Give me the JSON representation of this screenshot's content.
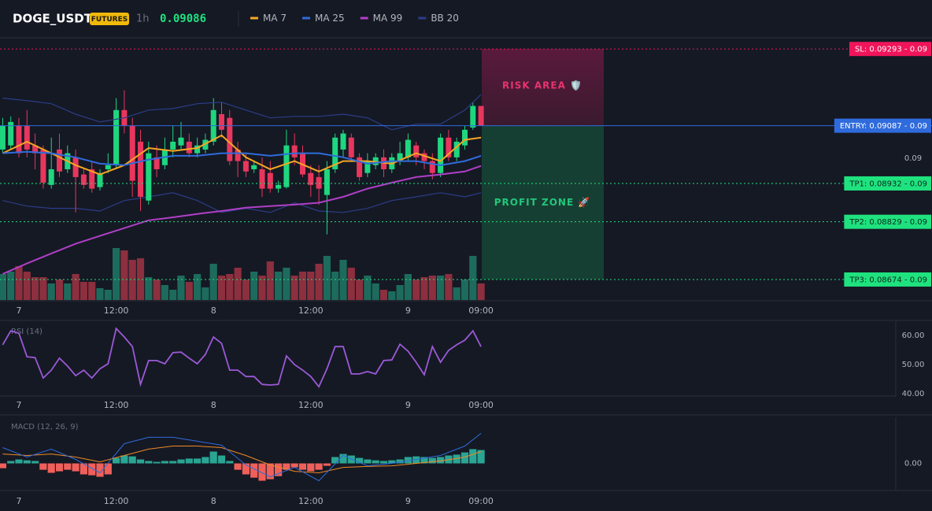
{
  "chart_data": [
    {
      "type": "candlestick",
      "title": "DOGE_USDT",
      "badge": "FUTURES",
      "interval": "1h",
      "last_price": 0.09086,
      "categories": [
        null,
        null,
        "7",
        null,
        null,
        null,
        null,
        null,
        null,
        null,
        null,
        null,
        null,
        null,
        "12:00",
        null,
        null,
        null,
        null,
        null,
        null,
        null,
        null,
        null,
        null,
        null,
        "8",
        null,
        null,
        null,
        null,
        null,
        null,
        null,
        null,
        null,
        null,
        null,
        "12:00",
        null,
        null,
        null,
        null,
        null,
        null,
        null,
        null,
        null,
        null,
        null,
        "9",
        null,
        null,
        null,
        null,
        null,
        null,
        null,
        null,
        "09:00"
      ],
      "open": [
        0.09023,
        0.09034,
        0.09087,
        0.09087,
        0.09034,
        0.09023,
        0.08928,
        0.09023,
        0.0897,
        0.09002,
        0.08956,
        0.0897,
        0.08922,
        0.0897,
        0.08981,
        0.09129,
        0.09087,
        0.09044,
        0.08886,
        0.09002,
        0.08981,
        0.09023,
        0.09034,
        0.09044,
        0.09013,
        0.09023,
        0.09044,
        0.09118,
        0.09108,
        0.09023,
        0.08992,
        0.0897,
        0.0897,
        0.0896,
        0.08918,
        0.08922,
        0.09034,
        0.09013,
        0.0896,
        0.08949,
        0.08901,
        0.0897,
        0.09023,
        0.09055,
        0.09002,
        0.0896,
        0.08981,
        0.09002,
        0.0897,
        0.08992,
        0.09002,
        0.09034,
        0.09013,
        0.08992,
        0.0896,
        0.09055,
        0.09002,
        0.09034,
        0.09082,
        0.0914
      ],
      "high": [
        0.09108,
        0.09112,
        0.09108,
        0.09129,
        0.09066,
        0.09034,
        0.09055,
        0.09066,
        0.09034,
        0.09023,
        0.0897,
        0.08992,
        0.0897,
        0.09013,
        0.09161,
        0.09182,
        0.09108,
        0.09076,
        0.09044,
        0.09034,
        0.09055,
        0.09087,
        0.09097,
        0.09066,
        0.09055,
        0.09066,
        0.09161,
        0.0915,
        0.09129,
        0.09044,
        0.09013,
        0.08992,
        0.09002,
        0.08992,
        0.08939,
        0.09076,
        0.09066,
        0.09034,
        0.08981,
        0.08981,
        0.08992,
        0.09066,
        0.09076,
        0.09066,
        0.09013,
        0.09013,
        0.09013,
        0.09023,
        0.09013,
        0.09044,
        0.09066,
        0.09044,
        0.09023,
        0.09013,
        0.09066,
        0.09076,
        0.09055,
        0.09087,
        0.0915,
        0.0914
      ],
      "low": [
        0.09013,
        0.09023,
        0.09002,
        0.09002,
        0.0897,
        0.08918,
        0.08918,
        0.08949,
        0.0896,
        0.08854,
        0.08918,
        0.08907,
        0.08913,
        0.0896,
        0.0897,
        0.09066,
        0.08896,
        0.08858,
        0.08875,
        0.08949,
        0.0897,
        0.09002,
        0.09023,
        0.09002,
        0.09002,
        0.09013,
        0.09034,
        0.09055,
        0.08981,
        0.08949,
        0.08949,
        0.0896,
        0.08896,
        0.08907,
        0.08907,
        0.08918,
        0.08981,
        0.08949,
        0.08896,
        0.08875,
        0.08795,
        0.0896,
        0.09002,
        0.08992,
        0.08939,
        0.08949,
        0.0897,
        0.08949,
        0.0896,
        0.08981,
        0.08992,
        0.08981,
        0.0897,
        0.08943,
        0.08949,
        0.08992,
        0.08992,
        0.09023,
        0.09076,
        0.09087
      ],
      "close": [
        0.09087,
        0.09097,
        0.09013,
        0.09023,
        0.09013,
        0.08934,
        0.0897,
        0.08964,
        0.09013,
        0.08949,
        0.08928,
        0.08918,
        0.0896,
        0.08981,
        0.09129,
        0.09087,
        0.08939,
        0.08896,
        0.09013,
        0.0897,
        0.09023,
        0.09044,
        0.09055,
        0.09013,
        0.09034,
        0.09049,
        0.09129,
        0.09076,
        0.08992,
        0.08992,
        0.08964,
        0.08981,
        0.08918,
        0.08918,
        0.08928,
        0.09034,
        0.09002,
        0.08956,
        0.08928,
        0.08918,
        0.0897,
        0.09055,
        0.09066,
        0.09002,
        0.08949,
        0.08992,
        0.09002,
        0.0897,
        0.09002,
        0.09013,
        0.09049,
        0.09002,
        0.08992,
        0.0896,
        0.09055,
        0.09002,
        0.09044,
        0.09076,
        0.0914,
        0.09087
      ],
      "up_color": "#1fd67f",
      "down_color": "#e8365d",
      "volume": {
        "ylim": [
          0,
          100
        ],
        "up_color": "#1d6b5c",
        "down_color": "#8c2f3e",
        "values": [
          33,
          36,
          43,
          36,
          29,
          29,
          21,
          26,
          21,
          33,
          23,
          23,
          15,
          13,
          66,
          63,
          51,
          53,
          29,
          26,
          19,
          13,
          31,
          23,
          33,
          16,
          46,
          31,
          33,
          41,
          26,
          36,
          31,
          49,
          36,
          41,
          31,
          36,
          36,
          46,
          56,
          36,
          51,
          41,
          26,
          31,
          21,
          13,
          11,
          19,
          33,
          26,
          29,
          31,
          31,
          33,
          16,
          26,
          56,
          21
        ]
      },
      "overlays": {
        "x": [
          0,
          3,
          6,
          9,
          12,
          15,
          18,
          21,
          24,
          27,
          30,
          33,
          36,
          39,
          42,
          45,
          48,
          51,
          54,
          57,
          59
        ],
        "series": [
          {
            "name": "MA 7",
            "color": "#f5a623",
            "values": [
              0.09013,
              0.09044,
              0.09013,
              0.08981,
              0.08956,
              0.08981,
              0.09027,
              0.09019,
              0.09027,
              0.09061,
              0.09002,
              0.0897,
              0.08992,
              0.08964,
              0.08992,
              0.08992,
              0.08985,
              0.09013,
              0.08992,
              0.09049,
              0.09055
            ]
          },
          {
            "name": "MA 25",
            "color": "#2f6bdc",
            "values": [
              0.09013,
              0.09017,
              0.09013,
              0.09002,
              0.08985,
              0.08981,
              0.08996,
              0.09006,
              0.09006,
              0.09013,
              0.09013,
              0.09006,
              0.09013,
              0.09013,
              0.09002,
              0.08985,
              0.08992,
              0.08992,
              0.08981,
              0.08992,
              0.09006
            ]
          },
          {
            "name": "MA 99",
            "color": "#b03fc7",
            "values": [
              0.08689,
              0.08717,
              0.08744,
              0.0877,
              0.08791,
              0.08812,
              0.08833,
              0.08841,
              0.0885,
              0.08858,
              0.08867,
              0.08871,
              0.08875,
              0.0888,
              0.08896,
              0.08918,
              0.08934,
              0.08949,
              0.08956,
              0.08964,
              0.08979
            ]
          },
          {
            "name": "BB 20",
            "color": "#2b3d88",
            "values": [
              0.09161,
              0.09154,
              0.09146,
              0.09118,
              0.09097,
              0.09108,
              0.09129,
              0.09133,
              0.09146,
              0.0915,
              0.09129,
              0.09108,
              0.09112,
              0.09112,
              0.09118,
              0.09108,
              0.09076,
              0.09091,
              0.09091,
              0.09129,
              0.09171
            ],
            "lower": [
              0.08886,
              0.08871,
              0.08865,
              0.08865,
              0.08858,
              0.08886,
              0.08896,
              0.08907,
              0.08886,
              0.08854,
              0.08865,
              0.08854,
              0.0888,
              0.08858,
              0.08854,
              0.08865,
              0.08886,
              0.08896,
              0.08907,
              0.08896,
              0.08907
            ]
          }
        ]
      },
      "ylim": [
        0.08619,
        0.09323
      ],
      "yticks": [
        0.09
      ],
      "levels": [
        {
          "label": "SL: 0.09293 - 0.09",
          "value": 0.09293,
          "color": "#f0155a",
          "style": "dotted"
        },
        {
          "label": "ENTRY: 0.09087 - 0.09",
          "value": 0.09087,
          "color": "#2f6bdc",
          "style": "solid"
        },
        {
          "label": "TP1: 0.08932 - 0.09",
          "value": 0.08932,
          "color": "#1fe27f",
          "style": "dotted"
        },
        {
          "label": "TP2: 0.08829 - 0.09",
          "value": 0.08829,
          "color": "#1fe27f",
          "style": "dotted"
        },
        {
          "label": "TP3: 0.08674 - 0.09",
          "value": 0.08674,
          "color": "#1fe27f",
          "style": "dotted"
        }
      ],
      "annotations": [
        "RISK AREA 🛡️",
        "PROFIT ZONE 🚀"
      ]
    },
    {
      "type": "line",
      "title": "RSI (14)",
      "categories": [
        null,
        null,
        "7",
        null,
        null,
        null,
        null,
        null,
        null,
        null,
        null,
        null,
        null,
        null,
        "12:00",
        null,
        null,
        null,
        null,
        null,
        null,
        null,
        null,
        null,
        null,
        null,
        "8",
        null,
        null,
        null,
        null,
        null,
        null,
        null,
        null,
        null,
        null,
        null,
        "12:00",
        null,
        null,
        null,
        null,
        null,
        null,
        null,
        null,
        null,
        null,
        null,
        "9",
        null,
        null,
        null,
        null,
        null,
        null,
        null,
        null,
        "09:00"
      ],
      "color": "#9b59d6",
      "values": [
        56.8,
        61.6,
        60.8,
        52.7,
        52.4,
        45.4,
        48.1,
        52.2,
        49.5,
        46.2,
        48.1,
        45.4,
        48.6,
        50.3,
        62.4,
        59.5,
        56.2,
        43.2,
        51.4,
        51.4,
        50.3,
        54.1,
        54.3,
        52.2,
        50.3,
        53.5,
        59.5,
        57.3,
        48.1,
        48.1,
        45.9,
        45.9,
        43.2,
        43.0,
        43.2,
        53.0,
        50.0,
        48.1,
        45.9,
        42.4,
        48.6,
        56.2,
        56.2,
        46.8,
        46.8,
        47.6,
        46.8,
        51.4,
        51.6,
        57.0,
        54.6,
        50.8,
        46.5,
        56.2,
        50.8,
        54.9,
        56.8,
        58.4,
        61.6,
        56.2
      ],
      "ylim": [
        39.2,
        64.9
      ],
      "yticks": [
        {
          "value": 60,
          "label": "60.00"
        },
        {
          "value": 50,
          "label": "50.00"
        },
        {
          "value": 40,
          "label": "40.00"
        }
      ]
    },
    {
      "type": "macd",
      "title": "MACD (12, 26, 9)",
      "categories": [
        null,
        null,
        "7",
        null,
        null,
        null,
        null,
        null,
        null,
        null,
        null,
        null,
        null,
        null,
        "12:00",
        null,
        null,
        null,
        null,
        null,
        null,
        null,
        null,
        null,
        null,
        null,
        "8",
        null,
        null,
        null,
        null,
        null,
        null,
        null,
        null,
        null,
        null,
        null,
        "12:00",
        null,
        null,
        null,
        null,
        null,
        null,
        null,
        null,
        null,
        null,
        null,
        "9",
        null,
        null,
        null,
        null,
        null,
        null,
        null,
        null,
        "09:00"
      ],
      "histogram": [
        -2.2e-05,
        1.1e-05,
        1.8e-05,
        1.4e-05,
        1.1e-05,
        -2.9e-05,
        -4.3e-05,
        -3.6e-05,
        -2.9e-05,
        -3.6e-05,
        -5e-05,
        -5.4e-05,
        -6.1e-05,
        -5e-05,
        2.5e-05,
        3.6e-05,
        3.2e-05,
        1.8e-05,
        1.1e-05,
        7e-06,
        1.1e-05,
        1.1e-05,
        1.8e-05,
        2.2e-05,
        2.2e-05,
        2.9e-05,
        5.4e-05,
        3.6e-05,
        1.1e-05,
        -2.9e-05,
        -5e-05,
        -6.5e-05,
        -7.9e-05,
        -7.2e-05,
        -5.8e-05,
        -2.9e-05,
        -1.8e-05,
        -2.9e-05,
        -3.6e-05,
        -2.9e-05,
        -1.1e-05,
        2.9e-05,
        4.3e-05,
        3.6e-05,
        2.5e-05,
        1.8e-05,
        1.4e-05,
        1.1e-05,
        1.4e-05,
        1.8e-05,
        2.9e-05,
        3.2e-05,
        2.9e-05,
        2.5e-05,
        2.9e-05,
        3.6e-05,
        4e-05,
        5e-05,
        6.5e-05,
        6.1e-05
      ],
      "up_color": "#2aa594",
      "down_color": "#f0605a",
      "lines": {
        "x": [
          0,
          3,
          6,
          9,
          12,
          15,
          18,
          21,
          24,
          27,
          30,
          33,
          36,
          39,
          42,
          45,
          48,
          51,
          54,
          57,
          59
        ],
        "macd": [
          7.2e-05,
          2.9e-05,
          6.5e-05,
          1.8e-05,
          -4.3e-05,
          9e-05,
          0.000119,
          0.000119,
          0.000101,
          8.3e-05,
          -7e-06,
          -6.1e-05,
          -1.8e-05,
          -7.9e-05,
          3.6e-05,
          -1.1e-05,
          0,
          1.8e-05,
          3.6e-05,
          7.9e-05,
          0.000137
        ],
        "signal": [
          4.3e-05,
          3.6e-05,
          4.3e-05,
          2.9e-05,
          7e-06,
          3.6e-05,
          6.5e-05,
          7.9e-05,
          7.9e-05,
          7.2e-05,
          3.6e-05,
          -7e-06,
          -3.6e-05,
          -4.3e-05,
          -1.8e-05,
          -1.4e-05,
          -1.1e-05,
          0,
          1.1e-05,
          2.9e-05,
          5.4e-05
        ],
        "macd_color": "#2f6bdc",
        "signal_color": "#f08a24"
      },
      "ylim": [
        -0.00012,
        0.00021
      ],
      "yticks": [
        {
          "value": 0,
          "label": "0.00"
        }
      ]
    }
  ]
}
